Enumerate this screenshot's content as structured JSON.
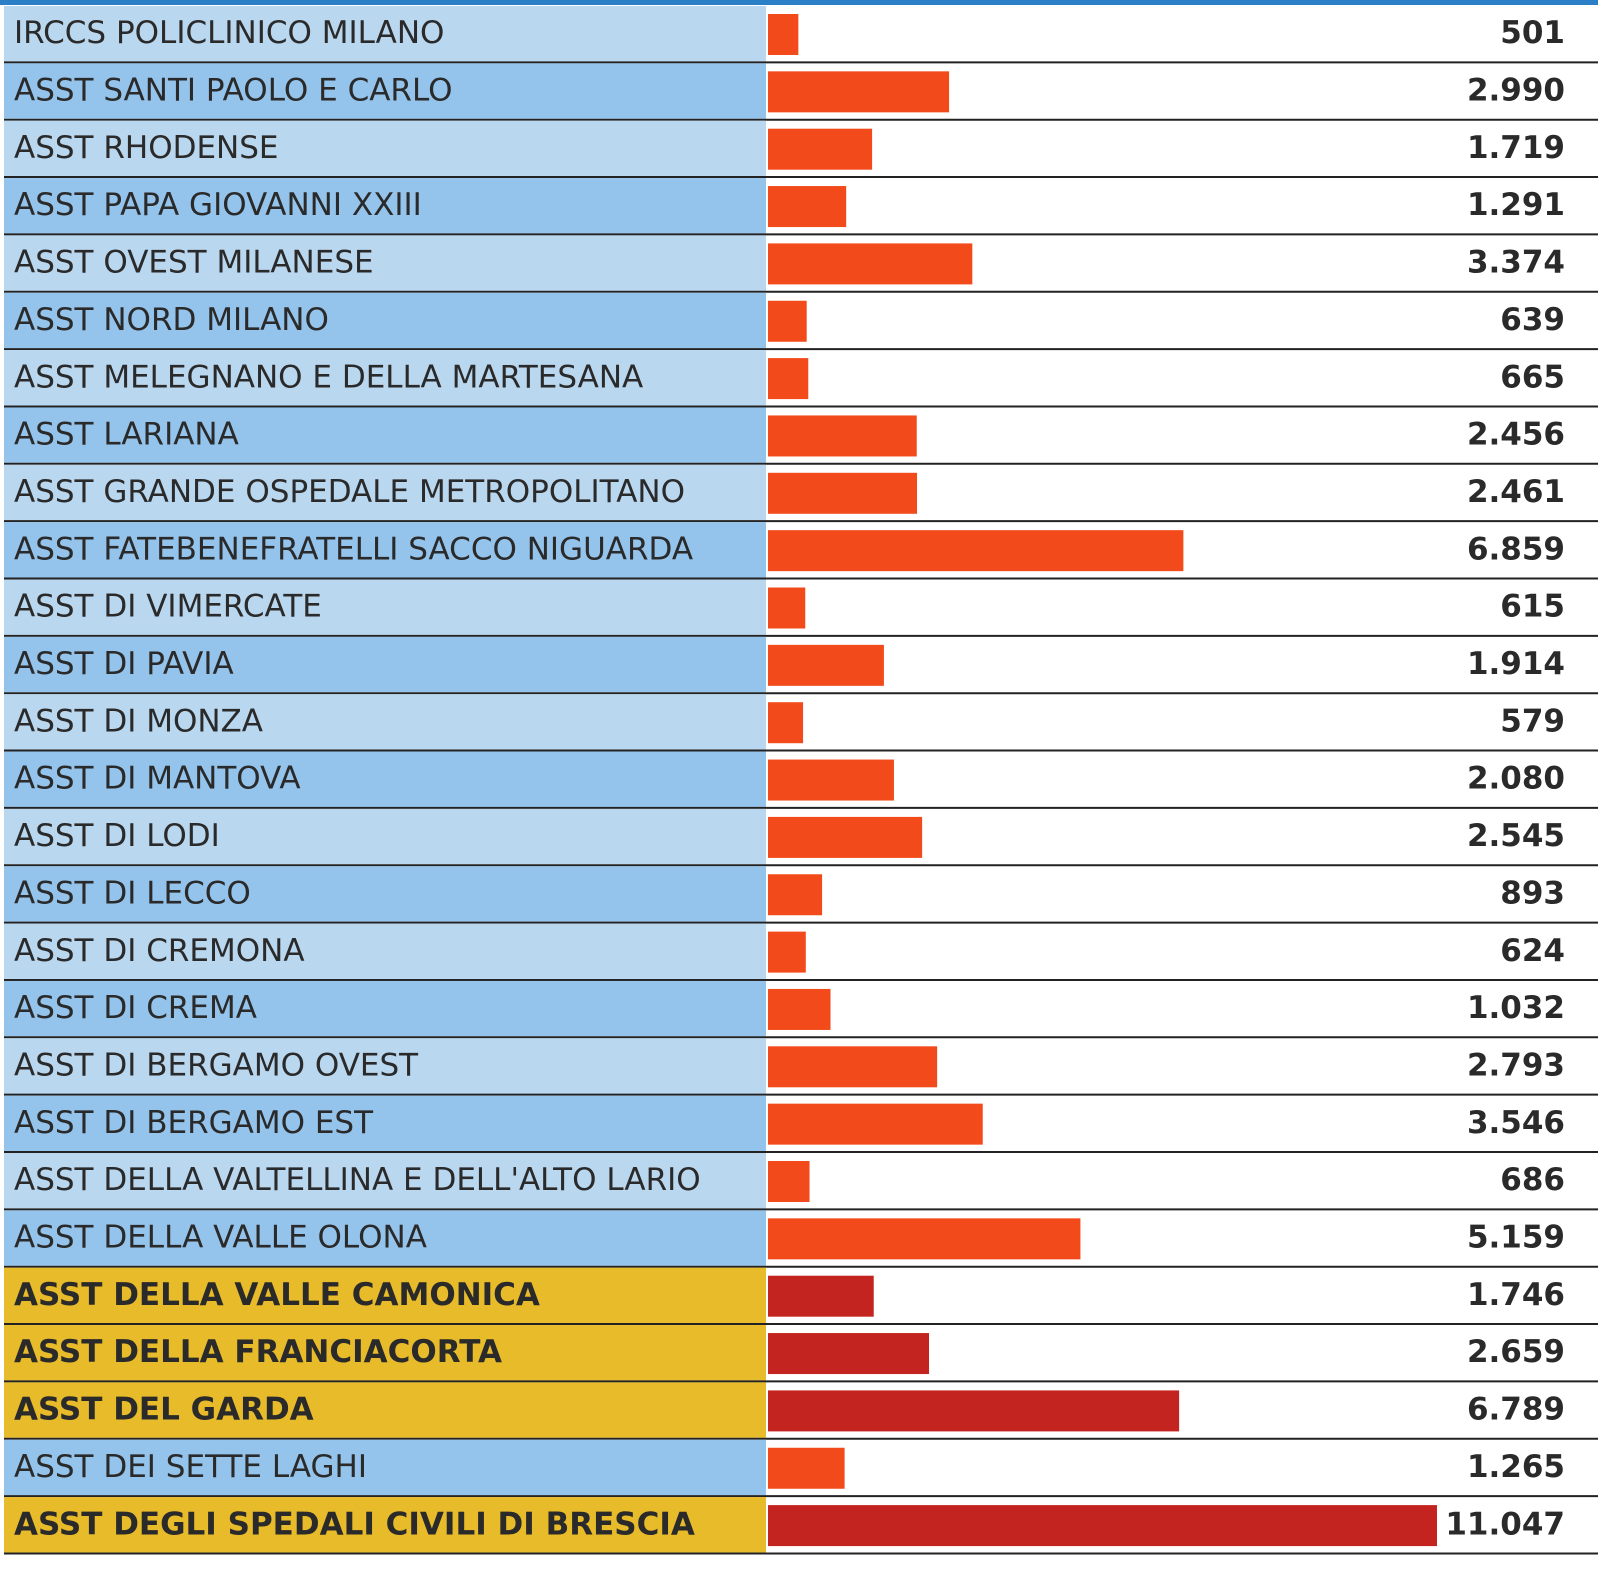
{
  "chart_data": {
    "type": "bar",
    "orientation": "horizontal",
    "categories": [
      "IRCCS POLICLINICO MILANO",
      "ASST SANTI PAOLO E CARLO",
      "ASST RHODENSE",
      "ASST PAPA GIOVANNI XXIII",
      "ASST OVEST MILANESE",
      "ASST NORD MILANO",
      "ASST MELEGNANO E DELLA MARTESANA",
      "ASST LARIANA",
      "ASST GRANDE OSPEDALE METROPOLITANO",
      "ASST FATEBENEFRATELLI SACCO NIGUARDA",
      "ASST DI VIMERCATE",
      "ASST DI PAVIA",
      "ASST DI MONZA",
      "ASST DI MANTOVA",
      "ASST DI LODI",
      "ASST DI LECCO",
      "ASST DI CREMONA",
      "ASST DI CREMA",
      "ASST DI BERGAMO OVEST",
      "ASST DI BERGAMO EST",
      "ASST DELLA VALTELLINA E DELL'ALTO LARIO",
      "ASST DELLA VALLE OLONA",
      "ASST DELLA VALLE CAMONICA",
      "ASST DELLA FRANCIACORTA",
      "ASST DEL GARDA",
      "ASST DEI SETTE LAGHI",
      "ASST DEGLI SPEDALI CIVILI DI BRESCIA"
    ],
    "values": [
      501,
      2990,
      1719,
      1291,
      3374,
      639,
      665,
      2456,
      2461,
      6859,
      615,
      1914,
      579,
      2080,
      2545,
      893,
      624,
      1032,
      2793,
      3546,
      686,
      5159,
      1746,
      2659,
      6789,
      1265,
      11047
    ],
    "value_labels": [
      "501",
      "2.990",
      "1.719",
      "1.291",
      "3.374",
      "639",
      "665",
      "2.456",
      "2.461",
      "6.859",
      "615",
      "1.914",
      "579",
      "2.080",
      "2.545",
      "893",
      "624",
      "1.032",
      "2.793",
      "3.546",
      "686",
      "5.159",
      "1.746",
      "2.659",
      "6.789",
      "1.265",
      "11.047"
    ],
    "color": "#f24a1b",
    "highlight_color": "#c42420",
    "highlight_background": "#e8bb2a",
    "row_backgrounds": [
      "#bad7f0",
      "#94c3eb"
    ],
    "highlighted": [
      22,
      23,
      24,
      26
    ]
  }
}
